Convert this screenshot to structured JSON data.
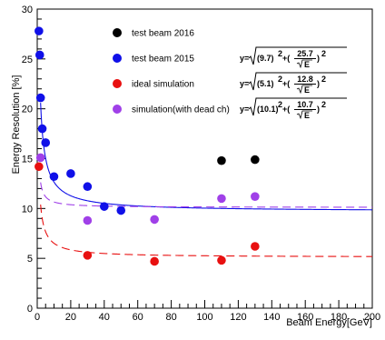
{
  "chart_data": {
    "type": "scatter",
    "title": "",
    "xlabel": "Beam Energy[GeV]",
    "ylabel": "Energy Resolution [%]",
    "xlim": [
      0,
      200
    ],
    "ylim": [
      0,
      30
    ],
    "x_ticks": [
      0,
      20,
      40,
      60,
      80,
      100,
      120,
      140,
      160,
      180,
      200
    ],
    "y_ticks": [
      0,
      5,
      10,
      15,
      20,
      25,
      30
    ],
    "grid": false,
    "legend_position": "top-center",
    "series": [
      {
        "name": "test beam 2016",
        "color": "#000000",
        "points": [
          [
            110,
            14.8
          ],
          [
            130,
            14.9
          ]
        ]
      },
      {
        "name": "test beam 2015",
        "color": "#1010e8",
        "points": [
          [
            1,
            27.8
          ],
          [
            1.5,
            25.4
          ],
          [
            2,
            21.1
          ],
          [
            3,
            18.0
          ],
          [
            5,
            16.6
          ],
          [
            10,
            13.2
          ],
          [
            20,
            13.5
          ],
          [
            30,
            12.2
          ],
          [
            40,
            10.2
          ],
          [
            50,
            9.8
          ]
        ],
        "fit": {
          "a": 9.7,
          "b": 25.7,
          "style": "solid",
          "x_range": [
            2,
            200
          ]
        },
        "formula": {
          "a": "9.7",
          "b": "25.7",
          "prefix": "y=",
          "exp": "2",
          "denominator": "E"
        }
      },
      {
        "name": "ideal simulation",
        "color": "#e81010",
        "points": [
          [
            1,
            14.2
          ],
          [
            30,
            5.3
          ],
          [
            70,
            4.7
          ],
          [
            110,
            4.8
          ],
          [
            130,
            6.2
          ]
        ],
        "fit": {
          "a": 5.1,
          "b": 12.8,
          "style": "dashed",
          "x_range": [
            2,
            200
          ]
        },
        "formula": {
          "a": "5.1",
          "b": "12.8",
          "prefix": "y=",
          "exp": "2",
          "denominator": "E"
        }
      },
      {
        "name": "simulation(with dead ch)",
        "color": "#a040e8",
        "points": [
          [
            2,
            15.1
          ],
          [
            30,
            8.8
          ],
          [
            70,
            8.9
          ],
          [
            110,
            11.0
          ],
          [
            130,
            11.2
          ]
        ],
        "fit": {
          "a": 10.1,
          "b": 10.7,
          "style": "dashed",
          "x_range": [
            2,
            200
          ]
        },
        "formula": {
          "a": "10.1",
          "b": "10.7",
          "prefix": "y=",
          "exp": "2",
          "denominator": "E"
        }
      }
    ]
  }
}
